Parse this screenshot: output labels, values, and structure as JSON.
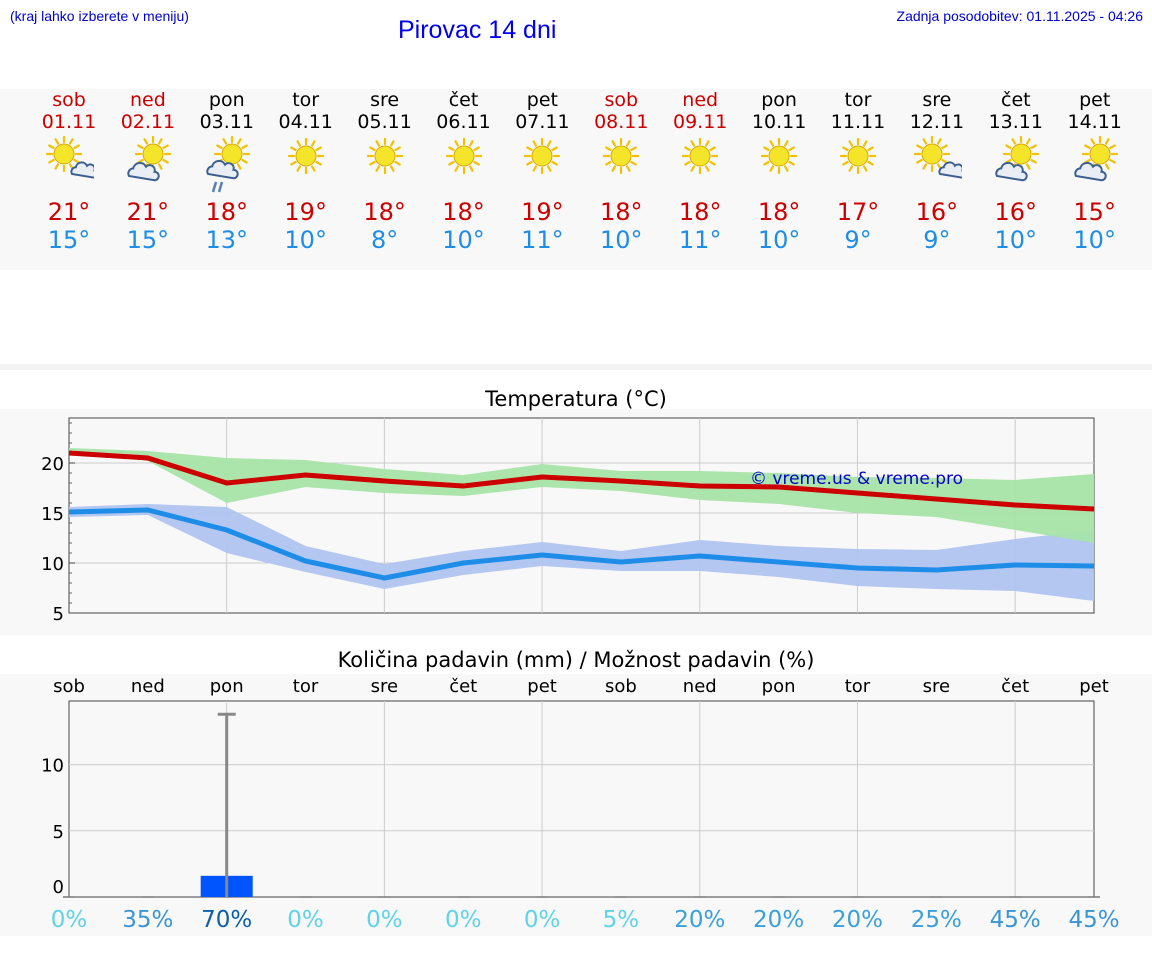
{
  "header": {
    "hint": "(kraj lahko izberete v meniju)",
    "title": "Pirovac 14 dni",
    "updated": "Zadnja posodobitev: 01.11.2025 - 04:26"
  },
  "days": [
    {
      "name": "sob",
      "date": "01.11",
      "icon": "sun-cloud",
      "max": "21°",
      "min": "15°",
      "weekend": true
    },
    {
      "name": "ned",
      "date": "02.11",
      "icon": "cloud-sun",
      "max": "21°",
      "min": "15°",
      "weekend": true
    },
    {
      "name": "pon",
      "date": "03.11",
      "icon": "rain-sun",
      "max": "18°",
      "min": "13°",
      "weekend": false
    },
    {
      "name": "tor",
      "date": "04.11",
      "icon": "sun",
      "max": "19°",
      "min": "10°",
      "weekend": false
    },
    {
      "name": "sre",
      "date": "05.11",
      "icon": "sun",
      "max": "18°",
      "min": "8°",
      "weekend": false
    },
    {
      "name": "čet",
      "date": "06.11",
      "icon": "sun",
      "max": "18°",
      "min": "10°",
      "weekend": false
    },
    {
      "name": "pet",
      "date": "07.11",
      "icon": "sun",
      "max": "19°",
      "min": "11°",
      "weekend": false
    },
    {
      "name": "sob",
      "date": "08.11",
      "icon": "sun",
      "max": "18°",
      "min": "10°",
      "weekend": true
    },
    {
      "name": "ned",
      "date": "09.11",
      "icon": "sun",
      "max": "18°",
      "min": "11°",
      "weekend": true
    },
    {
      "name": "pon",
      "date": "10.11",
      "icon": "sun",
      "max": "18°",
      "min": "10°",
      "weekend": false
    },
    {
      "name": "tor",
      "date": "11.11",
      "icon": "sun",
      "max": "17°",
      "min": "9°",
      "weekend": false
    },
    {
      "name": "sre",
      "date": "12.11",
      "icon": "sun-cloud",
      "max": "16°",
      "min": "9°",
      "weekend": false
    },
    {
      "name": "čet",
      "date": "13.11",
      "icon": "cloud-sun",
      "max": "16°",
      "min": "10°",
      "weekend": false
    },
    {
      "name": "pet",
      "date": "14.11",
      "icon": "cloud-sun",
      "max": "15°",
      "min": "10°",
      "weekend": false
    }
  ],
  "colors": {
    "max": "#cc0000",
    "min": "#1e8de8",
    "max_band": "#a8e4a8",
    "min_band": "#b0c4f0",
    "bar": "#0055ff",
    "ref_line": "#0000cc"
  },
  "chart_data": [
    {
      "type": "line",
      "title": "Temperatura (°C)",
      "watermark": "© vreme.us & vreme.pro",
      "x": [
        0,
        1,
        2,
        3,
        4,
        5,
        6,
        7,
        8,
        9,
        10,
        11,
        12,
        13
      ],
      "ylim": [
        5,
        24.5
      ],
      "yticks": [
        5,
        10,
        15,
        20
      ],
      "series": [
        {
          "name": "max",
          "values": [
            21,
            20.5,
            18,
            18.8,
            18.2,
            17.7,
            18.6,
            18.2,
            17.7,
            17.6,
            17.0,
            16.4,
            15.8,
            15.4
          ],
          "band_low": [
            21.2,
            20.2,
            16,
            17.6,
            17,
            16.7,
            17.6,
            17.2,
            16.3,
            15.9,
            15.0,
            14.6,
            13.3,
            12.0
          ],
          "band_high": [
            21.5,
            21.2,
            20.5,
            20.3,
            19.4,
            18.8,
            19.9,
            19.2,
            19.2,
            19.0,
            18.6,
            18.5,
            18.3,
            18.9
          ]
        },
        {
          "name": "min",
          "values": [
            15.1,
            15.3,
            13.3,
            10.2,
            8.5,
            10.0,
            10.8,
            10.1,
            10.7,
            10.1,
            9.5,
            9.3,
            9.8,
            9.7
          ],
          "band_low": [
            14.6,
            14.8,
            11.0,
            9.1,
            7.4,
            8.8,
            9.7,
            9.2,
            9.2,
            8.6,
            7.7,
            7.4,
            7.2,
            6.2
          ],
          "band_high": [
            15.6,
            15.9,
            15.6,
            11.7,
            9.9,
            11.2,
            12.1,
            11.2,
            12.3,
            11.7,
            11.4,
            11.3,
            12.4,
            13.3
          ]
        }
      ]
    },
    {
      "type": "bar",
      "title": "Količina padavin (mm) / Možnost padavin (%)",
      "categories": [
        "sob",
        "ned",
        "pon",
        "tor",
        "sre",
        "čet",
        "pet",
        "sob",
        "ned",
        "pon",
        "tor",
        "sre",
        "čet",
        "pet"
      ],
      "values": [
        0,
        0,
        1.6,
        0,
        0,
        0,
        0,
        0,
        0,
        0,
        0,
        0,
        0,
        0
      ],
      "error_high": [
        0,
        0,
        13.8,
        0,
        0,
        0,
        0,
        0,
        0,
        0,
        0,
        0,
        0,
        0
      ],
      "ylim": [
        0,
        14.8
      ],
      "yticks": [
        0,
        5,
        10
      ],
      "probability": [
        "0%",
        "35%",
        "70%",
        "0%",
        "0%",
        "0%",
        "0%",
        "5%",
        "20%",
        "20%",
        "20%",
        "25%",
        "45%",
        "45%"
      ],
      "probability_colors": [
        "#5fd3e8",
        "#3a95d5",
        "#0c5fa7",
        "#5fd3e8",
        "#5fd3e8",
        "#5fd3e8",
        "#5fd3e8",
        "#5fd3e8",
        "#3aa0dc",
        "#3aa0dc",
        "#3aa0dc",
        "#3aa0dc",
        "#3a95d5",
        "#3a95d5"
      ]
    }
  ]
}
